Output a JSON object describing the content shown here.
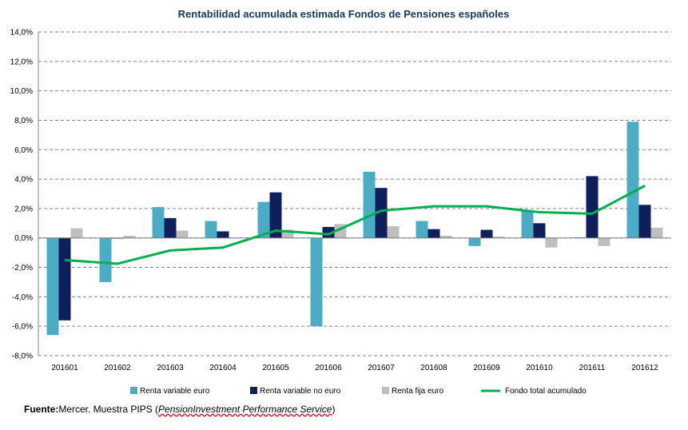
{
  "chart_data": {
    "type": "bar",
    "title": "Rentabilidad acumulada estimada Fondos de Pensiones españoles",
    "categories": [
      "201601",
      "201602",
      "201603",
      "201604",
      "201605",
      "201606",
      "201607",
      "201608",
      "201609",
      "201610",
      "201611",
      "201612"
    ],
    "ylim": [
      -8,
      14
    ],
    "yticks": [
      -8,
      -6,
      -4,
      -2,
      0,
      2,
      4,
      6,
      8,
      10,
      12,
      14
    ],
    "ytick_labels": [
      "-8,0%",
      "-6,0%",
      "-4,0%",
      "-2,0%",
      "0,0%",
      "2,0%",
      "4,0%",
      "6,0%",
      "8,0%",
      "10,0%",
      "12,0%",
      "14,0%"
    ],
    "grid": true,
    "legend_position": "bottom",
    "series": [
      {
        "name": "Renta variable euro",
        "type": "bar",
        "color": "#4bacc6",
        "values": [
          -6.6,
          -3.0,
          2.1,
          1.15,
          2.45,
          -6.0,
          4.5,
          1.15,
          -0.55,
          1.9,
          0.05,
          7.9
        ]
      },
      {
        "name": "Renta variable no euro",
        "type": "bar",
        "color": "#0f1f5c",
        "values": [
          -5.6,
          0.0,
          1.35,
          0.45,
          3.1,
          0.75,
          3.4,
          0.6,
          0.55,
          1.0,
          4.2,
          2.25
        ]
      },
      {
        "name": "Renta fija euro",
        "type": "bar",
        "color": "#bfbfbf",
        "values": [
          0.65,
          0.15,
          0.5,
          0.0,
          0.55,
          0.95,
          0.8,
          0.15,
          0.1,
          -0.65,
          -0.55,
          0.7
        ]
      },
      {
        "name": "Fondo total acumulado",
        "type": "line",
        "color": "#00b050",
        "values": [
          -1.5,
          -1.75,
          -0.85,
          -0.65,
          0.5,
          0.25,
          1.85,
          2.15,
          2.15,
          1.75,
          1.65,
          3.55
        ]
      }
    ]
  },
  "source": {
    "label": "Fuente:",
    "text": "Mercer. Muestra PIPS (",
    "italic": "PensionInvestment Performance Service",
    "close": ")"
  }
}
